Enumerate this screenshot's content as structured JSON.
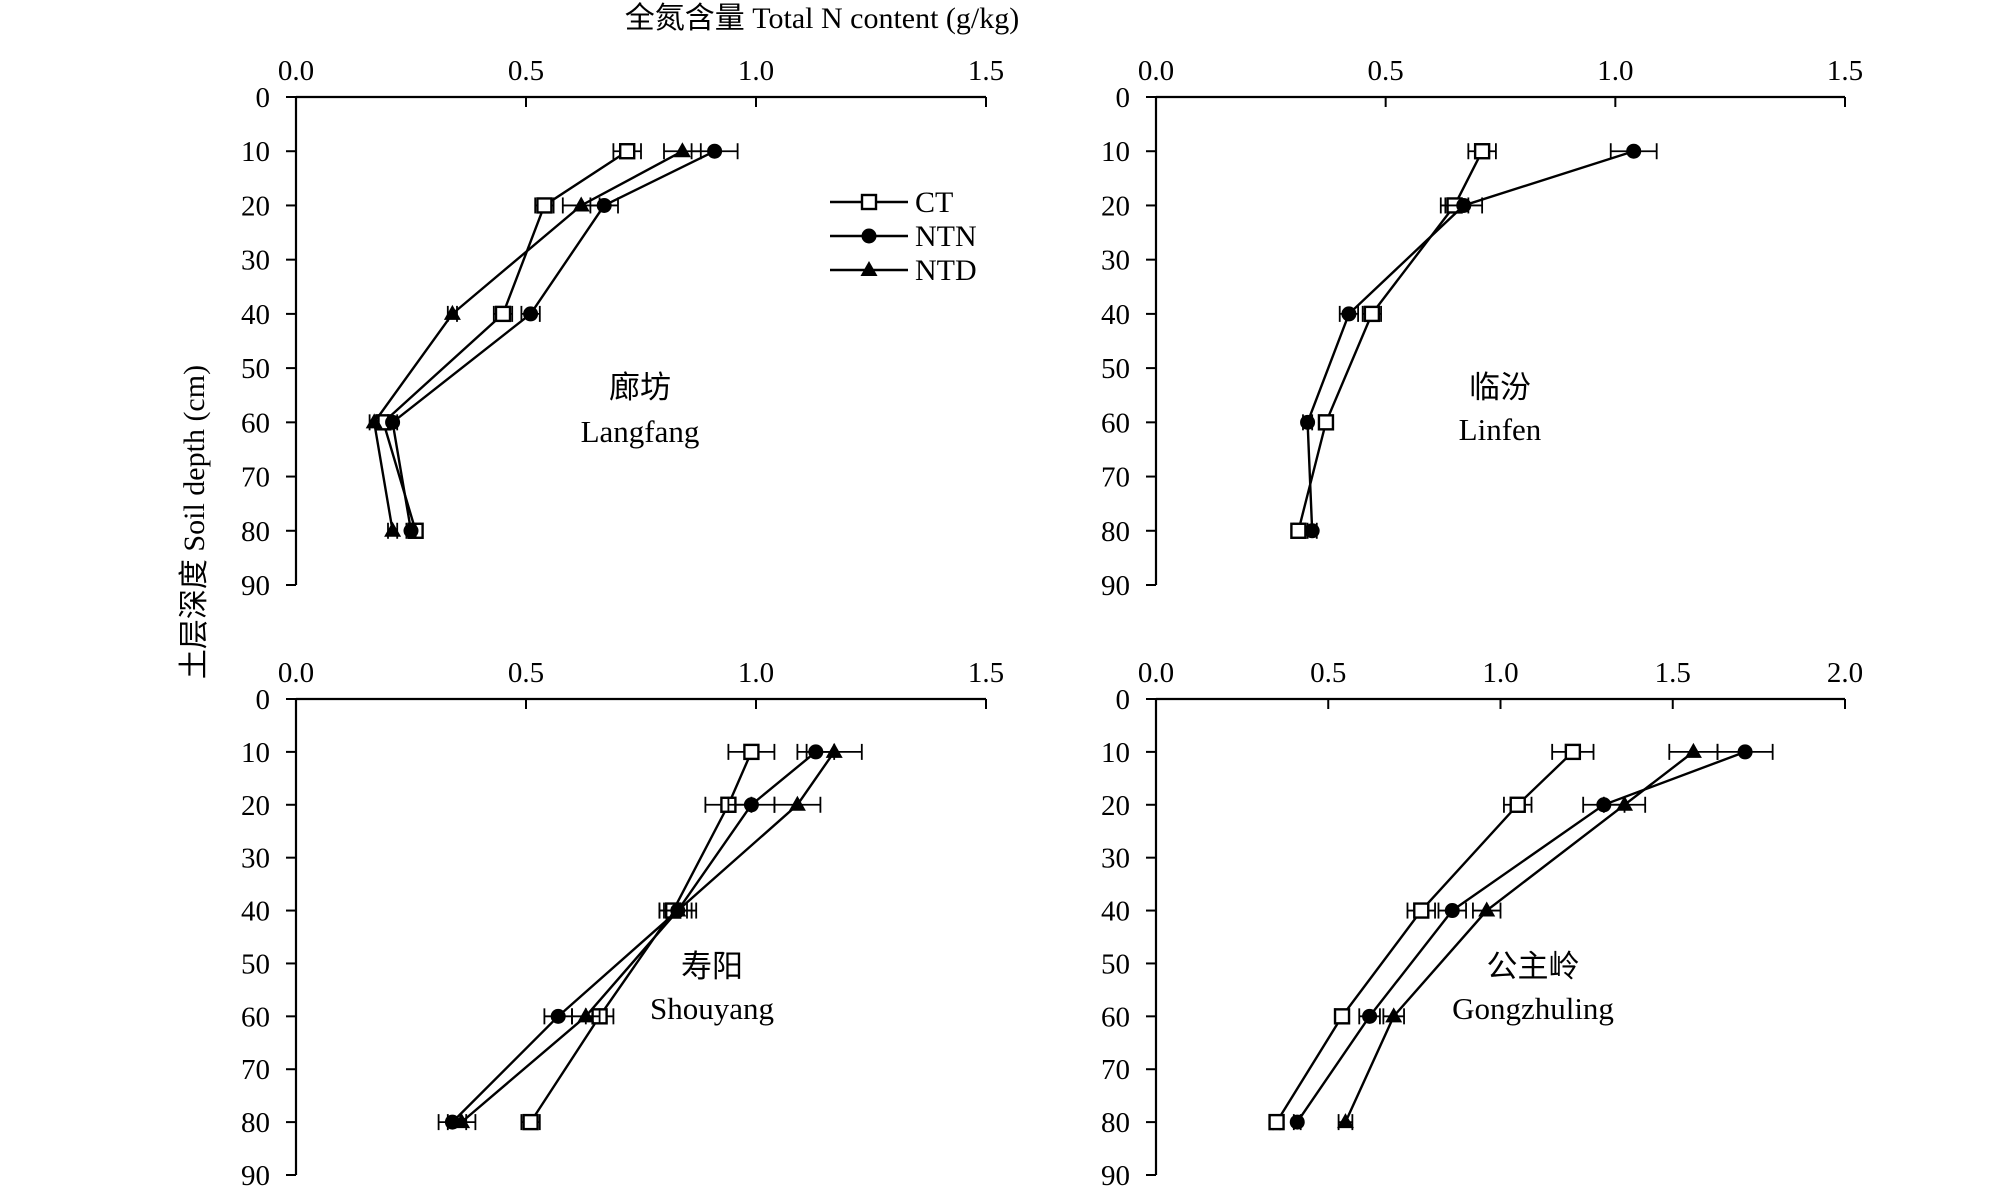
{
  "figure": {
    "x_title": "全氮含量 Total N content (g/kg)",
    "y_title": "土层深度 Soil depth (cm)"
  },
  "legend": [
    {
      "name": "CT",
      "marker": "square-open"
    },
    {
      "name": "NTN",
      "marker": "circle-filled"
    },
    {
      "name": "NTD",
      "marker": "triangle-filled"
    }
  ],
  "chart_data": [
    {
      "type": "line",
      "panel": "top-left",
      "label_cn": "廊坊",
      "label_en": "Langfang",
      "xlim": [
        0,
        1.5
      ],
      "xticks": [
        "0.0",
        "0.5",
        "1.0",
        "1.5"
      ],
      "ylim": [
        0,
        90
      ],
      "yticks": [
        "0",
        "10",
        "20",
        "30",
        "40",
        "50",
        "60",
        "70",
        "80",
        "90"
      ],
      "depths": [
        10,
        20,
        40,
        60,
        80
      ],
      "series": [
        {
          "name": "CT",
          "values": [
            0.72,
            0.54,
            0.45,
            0.19,
            0.26
          ],
          "errors": [
            0.03,
            0.02,
            0.02,
            0.01,
            0.01
          ]
        },
        {
          "name": "NTN",
          "values": [
            0.91,
            0.67,
            0.51,
            0.21,
            0.25
          ],
          "errors": [
            0.05,
            0.03,
            0.02,
            0.01,
            0.01
          ]
        },
        {
          "name": "NTD",
          "values": [
            0.84,
            0.62,
            0.34,
            0.17,
            0.21
          ],
          "errors": [
            0.04,
            0.04,
            0.01,
            0.01,
            0.01
          ]
        }
      ]
    },
    {
      "type": "line",
      "panel": "top-right",
      "label_cn": "临汾",
      "label_en": "Linfen",
      "xlim": [
        0,
        1.5
      ],
      "xticks": [
        "0.0",
        "0.5",
        "1.0",
        "1.5"
      ],
      "ylim": [
        0,
        90
      ],
      "yticks": [
        "0",
        "10",
        "20",
        "30",
        "40",
        "50",
        "60",
        "70",
        "80",
        "90"
      ],
      "depths": [
        10,
        20,
        40,
        60,
        80
      ],
      "series": [
        {
          "name": "CT",
          "values": [
            0.71,
            0.65,
            0.47,
            0.37,
            0.31
          ],
          "errors": [
            0.03,
            0.03,
            0.02,
            0.01,
            0.01
          ]
        },
        {
          "name": "NTN",
          "values": [
            1.04,
            0.67,
            0.42,
            0.33,
            0.34
          ],
          "errors": [
            0.05,
            0.04,
            0.02,
            0.01,
            0.01
          ]
        }
      ]
    },
    {
      "type": "line",
      "panel": "bottom-left",
      "label_cn": "寿阳",
      "label_en": "Shouyang",
      "xlim": [
        0,
        1.5
      ],
      "xticks": [
        "0.0",
        "0.5",
        "1.0",
        "1.5"
      ],
      "ylim": [
        0,
        90
      ],
      "yticks": [
        "0",
        "10",
        "20",
        "30",
        "40",
        "50",
        "60",
        "70",
        "80",
        "90"
      ],
      "depths": [
        10,
        20,
        40,
        60,
        80
      ],
      "series": [
        {
          "name": "CT",
          "values": [
            0.99,
            0.94,
            0.82,
            0.66,
            0.51
          ],
          "errors": [
            0.05,
            0.05,
            0.03,
            0.03,
            0.02
          ]
        },
        {
          "name": "NTN",
          "values": [
            1.13,
            0.99,
            0.83,
            0.57,
            0.34
          ],
          "errors": [
            0.04,
            0.05,
            0.04,
            0.03,
            0.03
          ]
        },
        {
          "name": "NTD",
          "values": [
            1.17,
            1.09,
            0.83,
            0.63,
            0.36
          ],
          "errors": [
            0.06,
            0.05,
            0.03,
            0.03,
            0.03
          ]
        }
      ]
    },
    {
      "type": "line",
      "panel": "bottom-right",
      "label_cn": "公主岭",
      "label_en": "Gongzhuling",
      "xlim": [
        0,
        2.0
      ],
      "xticks": [
        "0.0",
        "0.5",
        "1.0",
        "1.5",
        "2.0"
      ],
      "ylim": [
        0,
        90
      ],
      "yticks": [
        "0",
        "10",
        "20",
        "30",
        "40",
        "50",
        "60",
        "70",
        "80",
        "90"
      ],
      "depths": [
        10,
        20,
        40,
        60,
        80
      ],
      "series": [
        {
          "name": "CT",
          "values": [
            1.21,
            1.05,
            0.77,
            0.54,
            0.35
          ],
          "errors": [
            0.06,
            0.04,
            0.04,
            0.02,
            0.01
          ]
        },
        {
          "name": "NTN",
          "values": [
            1.71,
            1.3,
            0.86,
            0.62,
            0.41
          ],
          "errors": [
            0.08,
            0.06,
            0.04,
            0.03,
            0.01
          ]
        },
        {
          "name": "NTD",
          "values": [
            1.56,
            1.36,
            0.96,
            0.69,
            0.55
          ],
          "errors": [
            0.07,
            0.06,
            0.04,
            0.03,
            0.02
          ]
        }
      ]
    }
  ]
}
